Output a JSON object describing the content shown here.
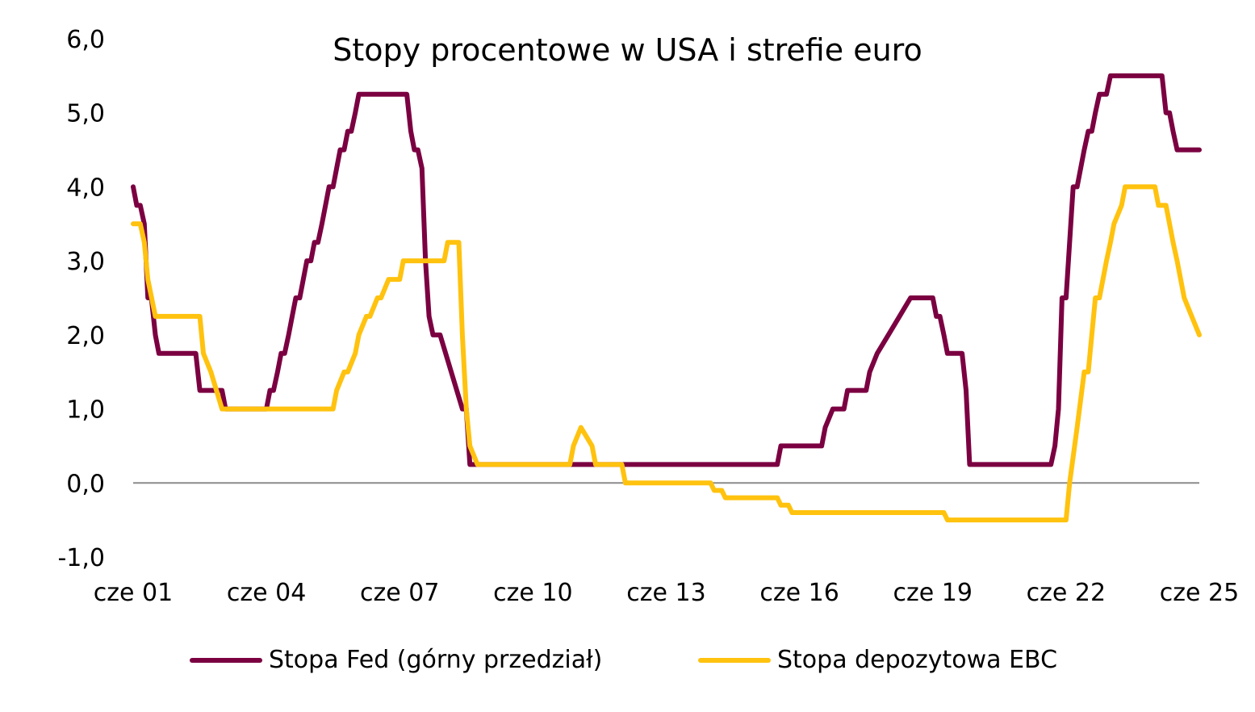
{
  "chart_data": {
    "type": "line",
    "title": "Stopy procentowe w USA i strefie euro",
    "xlabel": "",
    "ylabel": "",
    "ylim": [
      -1,
      6
    ],
    "yticks": [
      "-1,0",
      "0,0",
      "1,0",
      "2,0",
      "3,0",
      "4,0",
      "5,0",
      "6,0"
    ],
    "xlim": [
      2001.42,
      2025.42
    ],
    "xticks": [
      "cze 01",
      "cze 04",
      "cze 07",
      "cze 10",
      "cze 13",
      "cze 16",
      "cze 19",
      "cze 22",
      "cze 25"
    ],
    "grid": false,
    "legend_position": "bottom",
    "series": [
      {
        "name": "Stopa Fed (górny przedział)",
        "color": "#7b0041",
        "x": [
          2001.42,
          2001.5,
          2001.58,
          2001.67,
          2001.75,
          2001.83,
          2001.92,
          2002.0,
          2002.08,
          2002.17,
          2002.83,
          2002.92,
          2003.0,
          2003.42,
          2003.5,
          2004.42,
          2004.5,
          2004.58,
          2004.67,
          2004.75,
          2004.83,
          2004.92,
          2005.0,
          2005.08,
          2005.17,
          2005.25,
          2005.33,
          2005.42,
          2005.5,
          2005.58,
          2005.67,
          2005.75,
          2005.83,
          2005.92,
          2006.0,
          2006.08,
          2006.17,
          2006.25,
          2006.33,
          2006.42,
          2006.5,
          2007.58,
          2007.67,
          2007.75,
          2007.83,
          2007.92,
          2008.0,
          2008.08,
          2008.17,
          2008.25,
          2008.33,
          2008.83,
          2008.92,
          2009.0,
          2015.92,
          2016.0,
          2016.92,
          2017.0,
          2017.17,
          2017.42,
          2017.5,
          2017.92,
          2018.0,
          2018.17,
          2018.42,
          2018.67,
          2018.92,
          2019.42,
          2019.5,
          2019.58,
          2019.67,
          2019.75,
          2019.83,
          2020.08,
          2020.17,
          2020.25,
          2022.08,
          2022.17,
          2022.25,
          2022.33,
          2022.42,
          2022.5,
          2022.58,
          2022.67,
          2022.83,
          2022.92,
          2023.0,
          2023.08,
          2023.17,
          2023.33,
          2023.42,
          2023.5,
          2024.58,
          2024.67,
          2024.75,
          2024.83,
          2024.92,
          2025.0,
          2025.42
        ],
        "y": [
          4.0,
          3.75,
          3.75,
          3.5,
          2.5,
          2.5,
          2.0,
          1.75,
          1.75,
          1.75,
          1.75,
          1.25,
          1.25,
          1.25,
          1.0,
          1.0,
          1.25,
          1.25,
          1.5,
          1.75,
          1.75,
          2.0,
          2.25,
          2.5,
          2.5,
          2.75,
          3.0,
          3.0,
          3.25,
          3.25,
          3.5,
          3.75,
          4.0,
          4.0,
          4.25,
          4.5,
          4.5,
          4.75,
          4.75,
          5.0,
          5.25,
          5.25,
          4.75,
          4.5,
          4.5,
          4.25,
          3.0,
          2.25,
          2.0,
          2.0,
          2.0,
          1.0,
          1.0,
          0.25,
          0.25,
          0.5,
          0.5,
          0.75,
          1.0,
          1.0,
          1.25,
          1.25,
          1.5,
          1.75,
          2.0,
          2.25,
          2.5,
          2.5,
          2.25,
          2.25,
          2.0,
          1.75,
          1.75,
          1.75,
          1.25,
          0.25,
          0.25,
          0.5,
          1.0,
          2.5,
          2.5,
          3.25,
          4.0,
          4.0,
          4.5,
          4.75,
          4.75,
          5.0,
          5.25,
          5.25,
          5.5,
          5.5,
          5.5,
          5.0,
          5.0,
          4.75,
          4.5,
          4.5,
          4.5
        ]
      },
      {
        "name": "Stopa depozytowa EBC",
        "color": "#ffc20e",
        "x": [
          2001.42,
          2001.58,
          2001.67,
          2001.75,
          2001.92,
          2002.92,
          2003.0,
          2003.17,
          2003.42,
          2003.5,
          2005.92,
          2006.0,
          2006.17,
          2006.25,
          2006.42,
          2006.5,
          2006.67,
          2006.75,
          2006.92,
          2007.0,
          2007.17,
          2007.42,
          2007.5,
          2008.42,
          2008.5,
          2008.75,
          2008.83,
          2008.92,
          2009.0,
          2009.17,
          2009.25,
          2009.42,
          2011.25,
          2011.33,
          2011.5,
          2011.75,
          2011.83,
          2011.92,
          2012.42,
          2012.5,
          2014.42,
          2014.5,
          2014.67,
          2014.75,
          2015.92,
          2016.0,
          2016.17,
          2016.25,
          2019.67,
          2019.75,
          2022.42,
          2022.5,
          2022.67,
          2022.83,
          2022.92,
          2023.0,
          2023.08,
          2023.17,
          2023.33,
          2023.42,
          2023.5,
          2023.67,
          2023.75,
          2024.42,
          2024.5,
          2024.67,
          2024.75,
          2024.83,
          2024.92,
          2025.0,
          2025.08,
          2025.25,
          2025.42
        ],
        "y": [
          3.5,
          3.5,
          3.25,
          2.75,
          2.25,
          2.25,
          1.75,
          1.5,
          1.0,
          1.0,
          1.0,
          1.25,
          1.5,
          1.5,
          1.75,
          2.0,
          2.25,
          2.25,
          2.5,
          2.5,
          2.75,
          2.75,
          3.0,
          3.0,
          3.25,
          3.25,
          2.0,
          1.0,
          0.5,
          0.25,
          0.25,
          0.25,
          0.25,
          0.5,
          0.75,
          0.5,
          0.25,
          0.25,
          0.25,
          0.0,
          0.0,
          -0.1,
          -0.1,
          -0.2,
          -0.2,
          -0.3,
          -0.3,
          -0.4,
          -0.4,
          -0.5,
          -0.5,
          0.0,
          0.75,
          1.5,
          1.5,
          2.0,
          2.5,
          2.5,
          3.0,
          3.25,
          3.5,
          3.75,
          4.0,
          4.0,
          3.75,
          3.75,
          3.5,
          3.25,
          3.0,
          2.75,
          2.5,
          2.25,
          2.0
        ]
      }
    ]
  }
}
